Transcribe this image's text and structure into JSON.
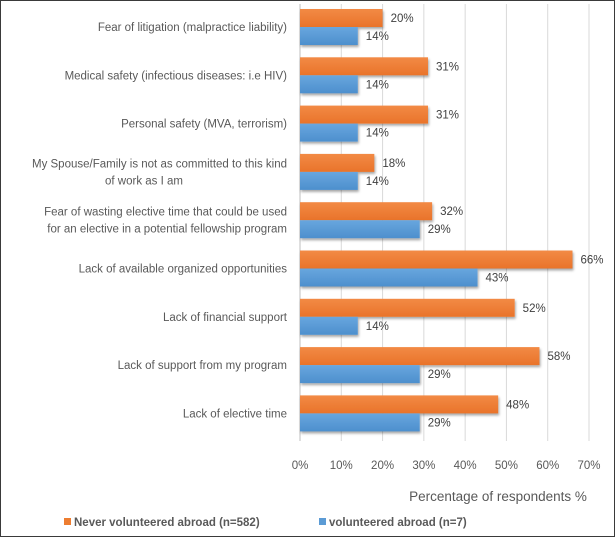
{
  "chart_data": {
    "type": "bar",
    "orientation": "horizontal",
    "title": "",
    "xlabel": "Percentage of respondents %",
    "ylabel": "",
    "xlim": [
      0,
      70
    ],
    "x_ticks": [
      "0%",
      "10%",
      "20%",
      "30%",
      "40%",
      "50%",
      "60%",
      "70%"
    ],
    "grid": true,
    "legend_position": "bottom",
    "categories": [
      [
        "Fear of litigation (malpractice liability)"
      ],
      [
        "Medical safety (infectious diseases: i.e HIV)"
      ],
      [
        "Personal safety (MVA, terrorism)"
      ],
      [
        "My Spouse/Family is not as committed to this kind",
        "of work as I am"
      ],
      [
        "Fear of wasting elective time that could be used",
        "for an elective in a potential fellowship program"
      ],
      [
        "Lack of available organized opportunities"
      ],
      [
        "Lack of financial support"
      ],
      [
        "Lack of support from my program"
      ],
      [
        "Lack of elective time"
      ]
    ],
    "series": [
      {
        "name": "Never volunteered abroad (n=582)",
        "color": "#ED7D31",
        "values": [
          20,
          31,
          31,
          18,
          32,
          66,
          52,
          58,
          48
        ],
        "labels": [
          "20%",
          "31%",
          "31%",
          "18%",
          "32%",
          "66%",
          "52%",
          "58%",
          "48%"
        ]
      },
      {
        "name": "volunteered abroad (n=7)",
        "color": "#5B9BD5",
        "values": [
          14,
          14,
          14,
          14,
          29,
          43,
          14,
          29,
          29
        ],
        "labels": [
          "14%",
          "14%",
          "14%",
          "14%",
          "29%",
          "43%",
          "14%",
          "29%",
          "29%"
        ]
      }
    ]
  }
}
